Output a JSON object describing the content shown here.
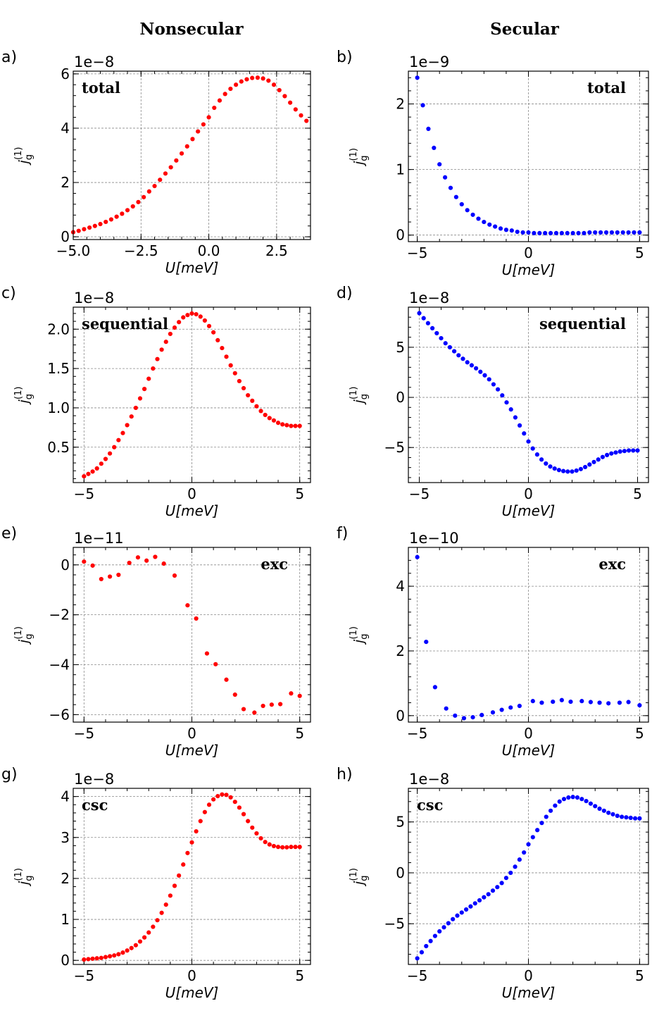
{
  "column_titles": {
    "left": "Nonsecular",
    "right": "Secular"
  },
  "colors": {
    "nonsecular": "#ff0000",
    "secular": "#0000ff"
  },
  "axis_text": {
    "xlabel": "U[meV]",
    "ylabel_main": "j",
    "ylabel_sub": "g",
    "ylabel_sup": "(1)"
  },
  "chart_data": [
    {
      "panel": "a)",
      "type": "scatter",
      "annotation": "total",
      "exponent": "1e−8",
      "xlim": [
        -5.0,
        3.75
      ],
      "ylim": [
        -0.1,
        6.1
      ],
      "xticks": [
        -5.0,
        -2.5,
        0.0,
        2.5
      ],
      "xticklabels": [
        "−5.0",
        "−2.5",
        "0.0",
        "2.5"
      ],
      "yticks": [
        0,
        2,
        4,
        6
      ],
      "yticklabels": [
        "0",
        "2",
        "4",
        "6"
      ],
      "grid": true,
      "color": "#ff0000",
      "x": [
        -5.0,
        -4.8,
        -4.6,
        -4.4,
        -4.2,
        -4.0,
        -3.8,
        -3.6,
        -3.4,
        -3.2,
        -3.0,
        -2.8,
        -2.6,
        -2.4,
        -2.2,
        -2.0,
        -1.8,
        -1.6,
        -1.4,
        -1.2,
        -1.0,
        -0.8,
        -0.6,
        -0.4,
        -0.2,
        0.0,
        0.2,
        0.4,
        0.6,
        0.8,
        1.0,
        1.2,
        1.4,
        1.6,
        1.8,
        2.0,
        2.2,
        2.4,
        2.6,
        2.8,
        3.0,
        3.2,
        3.4,
        3.6
      ],
      "y": [
        0.17,
        0.22,
        0.28,
        0.34,
        0.4,
        0.47,
        0.55,
        0.64,
        0.74,
        0.85,
        0.98,
        1.12,
        1.28,
        1.46,
        1.67,
        1.87,
        2.1,
        2.33,
        2.56,
        2.81,
        3.07,
        3.33,
        3.6,
        3.88,
        4.14,
        4.4,
        4.75,
        5.02,
        5.26,
        5.45,
        5.6,
        5.72,
        5.8,
        5.85,
        5.86,
        5.83,
        5.75,
        5.6,
        5.4,
        5.18,
        4.94,
        4.69,
        4.47,
        4.27
      ]
    },
    {
      "panel": "b)",
      "type": "scatter",
      "annotation": "total",
      "exponent": "1e−9",
      "xlim": [
        -5.4,
        5.4
      ],
      "ylim": [
        -0.1,
        2.5
      ],
      "xticks": [
        -5,
        0,
        5
      ],
      "xticklabels": [
        "−5",
        "0",
        "5"
      ],
      "yticks": [
        0,
        1,
        2
      ],
      "yticklabels": [
        "0",
        "1",
        "2"
      ],
      "grid": true,
      "color": "#0000ff",
      "x": [
        -5.0,
        -4.75,
        -4.5,
        -4.25,
        -4.0,
        -3.75,
        -3.5,
        -3.25,
        -3.0,
        -2.75,
        -2.5,
        -2.25,
        -2.0,
        -1.75,
        -1.5,
        -1.25,
        -1.0,
        -0.75,
        -0.5,
        -0.25,
        0.0,
        0.25,
        0.5,
        0.75,
        1.0,
        1.25,
        1.5,
        1.75,
        2.0,
        2.25,
        2.5,
        2.75,
        3.0,
        3.25,
        3.5,
        3.75,
        4.0,
        4.25,
        4.5,
        4.75,
        5.0
      ],
      "y": [
        2.4,
        1.98,
        1.62,
        1.33,
        1.08,
        0.88,
        0.72,
        0.58,
        0.47,
        0.38,
        0.31,
        0.25,
        0.2,
        0.16,
        0.13,
        0.1,
        0.08,
        0.07,
        0.05,
        0.04,
        0.04,
        0.03,
        0.03,
        0.03,
        0.03,
        0.03,
        0.03,
        0.03,
        0.03,
        0.03,
        0.03,
        0.04,
        0.04,
        0.04,
        0.04,
        0.04,
        0.04,
        0.04,
        0.04,
        0.04,
        0.04
      ]
    },
    {
      "panel": "c)",
      "type": "scatter",
      "annotation": "sequential",
      "exponent": "1e−8",
      "xlim": [
        -5.5,
        5.5
      ],
      "ylim": [
        0.05,
        2.28
      ],
      "xticks": [
        -5,
        0,
        5
      ],
      "xticklabels": [
        "−5",
        "0",
        "5"
      ],
      "yticks": [
        0.5,
        1.0,
        1.5,
        2.0
      ],
      "yticklabels": [
        "0.5",
        "1.0",
        "1.5",
        "2.0"
      ],
      "grid": true,
      "color": "#ff0000",
      "x": [
        -5.0,
        -4.8,
        -4.6,
        -4.4,
        -4.2,
        -4.0,
        -3.8,
        -3.6,
        -3.4,
        -3.2,
        -3.0,
        -2.8,
        -2.6,
        -2.4,
        -2.2,
        -2.0,
        -1.8,
        -1.6,
        -1.4,
        -1.2,
        -1.0,
        -0.8,
        -0.6,
        -0.4,
        -0.2,
        0.0,
        0.2,
        0.4,
        0.6,
        0.8,
        1.0,
        1.2,
        1.4,
        1.6,
        1.8,
        2.0,
        2.2,
        2.4,
        2.6,
        2.8,
        3.0,
        3.2,
        3.4,
        3.6,
        3.8,
        4.0,
        4.2,
        4.4,
        4.6,
        4.8,
        5.0
      ],
      "y": [
        0.13,
        0.16,
        0.19,
        0.23,
        0.29,
        0.35,
        0.42,
        0.5,
        0.59,
        0.68,
        0.78,
        0.89,
        1.0,
        1.12,
        1.24,
        1.37,
        1.5,
        1.62,
        1.74,
        1.84,
        1.94,
        2.02,
        2.09,
        2.15,
        2.18,
        2.2,
        2.19,
        2.16,
        2.11,
        2.04,
        1.96,
        1.86,
        1.76,
        1.65,
        1.54,
        1.44,
        1.34,
        1.25,
        1.16,
        1.09,
        1.02,
        0.96,
        0.91,
        0.87,
        0.84,
        0.81,
        0.79,
        0.78,
        0.77,
        0.77,
        0.77
      ]
    },
    {
      "panel": "d)",
      "type": "scatter",
      "annotation": "sequential",
      "exponent": "1e−8",
      "xlim": [
        -5.5,
        5.5
      ],
      "ylim": [
        -8.5,
        9.0
      ],
      "xticks": [
        -5,
        0,
        5
      ],
      "xticklabels": [
        "−5",
        "0",
        "5"
      ],
      "yticks": [
        -5,
        0,
        5
      ],
      "yticklabels": [
        "−5",
        "0",
        "5"
      ],
      "grid": true,
      "color": "#0000ff",
      "x": [
        -5.0,
        -4.8,
        -4.6,
        -4.4,
        -4.2,
        -4.0,
        -3.8,
        -3.6,
        -3.4,
        -3.2,
        -3.0,
        -2.8,
        -2.6,
        -2.4,
        -2.2,
        -2.0,
        -1.8,
        -1.6,
        -1.4,
        -1.2,
        -1.0,
        -0.8,
        -0.6,
        -0.4,
        -0.2,
        0.0,
        0.2,
        0.4,
        0.6,
        0.8,
        1.0,
        1.2,
        1.4,
        1.6,
        1.8,
        2.0,
        2.2,
        2.4,
        2.6,
        2.8,
        3.0,
        3.2,
        3.4,
        3.6,
        3.8,
        4.0,
        4.2,
        4.4,
        4.6,
        4.8,
        5.0
      ],
      "y": [
        8.4,
        7.9,
        7.4,
        6.9,
        6.4,
        5.9,
        5.4,
        5.0,
        4.6,
        4.2,
        3.85,
        3.5,
        3.2,
        2.9,
        2.55,
        2.2,
        1.8,
        1.3,
        0.8,
        0.2,
        -0.5,
        -1.2,
        -2.0,
        -2.8,
        -3.6,
        -4.4,
        -5.1,
        -5.7,
        -6.2,
        -6.6,
        -6.9,
        -7.1,
        -7.25,
        -7.35,
        -7.4,
        -7.4,
        -7.3,
        -7.15,
        -6.95,
        -6.7,
        -6.45,
        -6.2,
        -5.95,
        -5.75,
        -5.6,
        -5.5,
        -5.4,
        -5.35,
        -5.3,
        -5.3,
        -5.3
      ]
    },
    {
      "panel": "e)",
      "type": "scatter",
      "annotation": "exc",
      "exponent": "1e−11",
      "xlim": [
        -5.5,
        5.5
      ],
      "ylim": [
        -6.3,
        0.7
      ],
      "xticks": [
        -5,
        0,
        5
      ],
      "xticklabels": [
        "−5",
        "0",
        "5"
      ],
      "yticks": [
        -6,
        -4,
        -2,
        0
      ],
      "yticklabels": [
        "−6",
        "−4",
        "−2",
        "0"
      ],
      "grid": true,
      "color": "#ff0000",
      "x": [
        -5.0,
        -4.6,
        -4.2,
        -3.8,
        -3.4,
        -2.9,
        -2.5,
        -2.1,
        -1.7,
        -1.3,
        -0.8,
        -0.2,
        0.2,
        0.7,
        1.1,
        1.6,
        2.0,
        2.4,
        2.9,
        3.3,
        3.7,
        4.1,
        4.6,
        5.0
      ],
      "y": [
        0.13,
        -0.03,
        -0.57,
        -0.47,
        -0.4,
        0.08,
        0.3,
        0.17,
        0.32,
        0.05,
        -0.43,
        -1.62,
        -2.15,
        -3.55,
        -3.98,
        -4.6,
        -5.2,
        -5.78,
        -5.92,
        -5.65,
        -5.6,
        -5.58,
        -5.15,
        -5.25
      ]
    },
    {
      "panel": "f)",
      "type": "scatter",
      "annotation": "exc",
      "exponent": "1e−10",
      "xlim": [
        -5.4,
        5.4
      ],
      "ylim": [
        -0.2,
        5.2
      ],
      "xticks": [
        -5,
        0,
        5
      ],
      "xticklabels": [
        "−5",
        "0",
        "5"
      ],
      "yticks": [
        0,
        2,
        4
      ],
      "yticklabels": [
        "0",
        "2",
        "4"
      ],
      "grid": true,
      "color": "#0000ff",
      "x": [
        -5.0,
        -4.6,
        -4.2,
        -3.7,
        -3.3,
        -2.9,
        -2.5,
        -2.1,
        -1.6,
        -1.2,
        -0.8,
        -0.4,
        0.2,
        0.6,
        1.1,
        1.5,
        1.9,
        2.4,
        2.8,
        3.2,
        3.6,
        4.1,
        4.5,
        5.0
      ],
      "y": [
        4.9,
        2.28,
        0.88,
        0.22,
        0.0,
        -0.08,
        -0.05,
        0.02,
        0.1,
        0.18,
        0.25,
        0.3,
        0.45,
        0.4,
        0.43,
        0.48,
        0.43,
        0.45,
        0.42,
        0.4,
        0.38,
        0.4,
        0.42,
        0.32
      ]
    },
    {
      "panel": "g)",
      "type": "scatter",
      "annotation": "csc",
      "exponent": "1e−8",
      "xlim": [
        -5.5,
        5.5
      ],
      "ylim": [
        -0.1,
        4.2
      ],
      "xticks": [
        -5,
        0,
        5
      ],
      "xticklabels": [
        "−5",
        "0",
        "5"
      ],
      "yticks": [
        0,
        1,
        2,
        3,
        4
      ],
      "yticklabels": [
        "0",
        "1",
        "2",
        "3",
        "4"
      ],
      "grid": true,
      "color": "#ff0000",
      "x": [
        -5.0,
        -4.8,
        -4.6,
        -4.4,
        -4.2,
        -4.0,
        -3.8,
        -3.6,
        -3.4,
        -3.2,
        -3.0,
        -2.8,
        -2.6,
        -2.4,
        -2.2,
        -2.0,
        -1.8,
        -1.6,
        -1.4,
        -1.2,
        -1.0,
        -0.8,
        -0.6,
        -0.4,
        -0.2,
        0.0,
        0.2,
        0.4,
        0.6,
        0.8,
        1.0,
        1.2,
        1.4,
        1.6,
        1.8,
        2.0,
        2.2,
        2.4,
        2.6,
        2.8,
        3.0,
        3.2,
        3.4,
        3.6,
        3.8,
        4.0,
        4.2,
        4.4,
        4.6,
        4.8,
        5.0
      ],
      "y": [
        0.02,
        0.03,
        0.04,
        0.05,
        0.06,
        0.08,
        0.1,
        0.12,
        0.15,
        0.19,
        0.24,
        0.3,
        0.37,
        0.46,
        0.56,
        0.68,
        0.82,
        0.98,
        1.16,
        1.36,
        1.58,
        1.82,
        2.07,
        2.34,
        2.62,
        2.88,
        3.15,
        3.4,
        3.62,
        3.8,
        3.93,
        4.01,
        4.05,
        4.04,
        3.98,
        3.87,
        3.73,
        3.57,
        3.4,
        3.24,
        3.1,
        2.98,
        2.89,
        2.83,
        2.79,
        2.77,
        2.76,
        2.76,
        2.77,
        2.77,
        2.77
      ]
    },
    {
      "panel": "h)",
      "type": "scatter",
      "annotation": "csc",
      "exponent": "1e−8",
      "xlim": [
        -5.4,
        5.4
      ],
      "ylim": [
        -9.0,
        8.3
      ],
      "xticks": [
        -5,
        0,
        5
      ],
      "xticklabels": [
        "−5",
        "0",
        "5"
      ],
      "yticks": [
        -5,
        0,
        5
      ],
      "yticklabels": [
        "−5",
        "0",
        "5"
      ],
      "grid": true,
      "color": "#0000ff",
      "x": [
        -5.0,
        -4.8,
        -4.6,
        -4.4,
        -4.2,
        -4.0,
        -3.8,
        -3.6,
        -3.4,
        -3.2,
        -3.0,
        -2.8,
        -2.6,
        -2.4,
        -2.2,
        -2.0,
        -1.8,
        -1.6,
        -1.4,
        -1.2,
        -1.0,
        -0.8,
        -0.6,
        -0.4,
        -0.2,
        0.0,
        0.2,
        0.4,
        0.6,
        0.8,
        1.0,
        1.2,
        1.4,
        1.6,
        1.8,
        2.0,
        2.2,
        2.4,
        2.6,
        2.8,
        3.0,
        3.2,
        3.4,
        3.6,
        3.8,
        4.0,
        4.2,
        4.4,
        4.6,
        4.8,
        5.0
      ],
      "y": [
        -8.4,
        -7.8,
        -7.2,
        -6.7,
        -6.2,
        -5.75,
        -5.35,
        -4.95,
        -4.55,
        -4.2,
        -3.9,
        -3.6,
        -3.3,
        -3.0,
        -2.7,
        -2.4,
        -2.1,
        -1.75,
        -1.4,
        -1.0,
        -0.5,
        0.0,
        0.6,
        1.3,
        2.0,
        2.8,
        3.5,
        4.2,
        4.9,
        5.5,
        6.1,
        6.6,
        7.0,
        7.25,
        7.4,
        7.45,
        7.4,
        7.25,
        7.05,
        6.8,
        6.55,
        6.3,
        6.1,
        5.9,
        5.75,
        5.6,
        5.5,
        5.45,
        5.4,
        5.35,
        5.35
      ]
    }
  ]
}
